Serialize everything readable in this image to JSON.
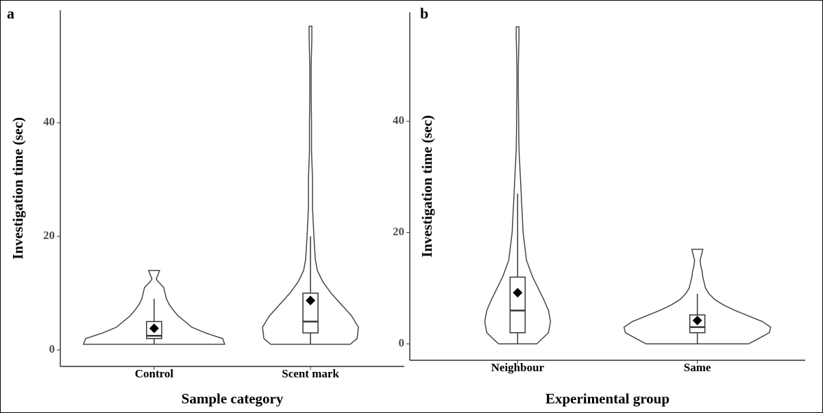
{
  "chart_data": [
    {
      "type": "violin",
      "panel": "a",
      "x_label": "Sample category",
      "y_label": "Investigation time (sec)",
      "categories": [
        "Control",
        "Scent mark"
      ],
      "ylim": [
        -2.9,
        59.8
      ],
      "yticks": [
        0,
        20,
        40
      ],
      "whisker_low": [
        1,
        1
      ],
      "q1": [
        2,
        3
      ],
      "median": [
        2.5,
        5
      ],
      "q3": [
        5,
        10
      ],
      "whisker_high": [
        9,
        20
      ],
      "mean": [
        3.8,
        8.7
      ],
      "density_y": [
        [
          1,
          2,
          3,
          4,
          5,
          6,
          7,
          8,
          9,
          10,
          11,
          12,
          12.5,
          13,
          14
        ],
        [
          1,
          2,
          4,
          6,
          8,
          10,
          12,
          14,
          16,
          20,
          25,
          30,
          35,
          40,
          45,
          50,
          55,
          57
        ]
      ],
      "density": [
        [
          1.03,
          1.0,
          0.75,
          0.55,
          0.45,
          0.35,
          0.28,
          0.22,
          0.18,
          0.16,
          0.14,
          0.06,
          0.03,
          0.05,
          0.08
        ],
        [
          0.58,
          0.68,
          0.7,
          0.6,
          0.45,
          0.3,
          0.18,
          0.1,
          0.07,
          0.05,
          0.03,
          0.03,
          0.015,
          0.015,
          0.01,
          0.01,
          0.02,
          0.02
        ]
      ]
    },
    {
      "type": "violin",
      "panel": "b",
      "x_label": "Experimental group",
      "y_label": "Investigation time (sec)",
      "categories": [
        "Neighbour",
        "Same"
      ],
      "ylim": [
        -2.95,
        59.6
      ],
      "yticks": [
        0,
        20,
        40
      ],
      "whisker_low": [
        0,
        0
      ],
      "q1": [
        2,
        2
      ],
      "median": [
        6,
        3
      ],
      "q3": [
        12,
        5.2
      ],
      "whisker_high": [
        27,
        9
      ],
      "mean": [
        9.2,
        4.2
      ],
      "density_y": [
        [
          0,
          2,
          4,
          6,
          8,
          10,
          12,
          15,
          20,
          25,
          30,
          35,
          40,
          45,
          50,
          55,
          57
        ],
        [
          0,
          1,
          2,
          3,
          4,
          5,
          6,
          7,
          8,
          9,
          10,
          11,
          12,
          13,
          14,
          15,
          16,
          17
        ]
      ],
      "density": [
        [
          0.28,
          0.45,
          0.48,
          0.45,
          0.38,
          0.3,
          0.22,
          0.13,
          0.08,
          0.06,
          0.04,
          0.02,
          0.015,
          0.01,
          0.01,
          0.02,
          0.02
        ],
        [
          0.75,
          0.9,
          1.05,
          1.07,
          0.95,
          0.75,
          0.55,
          0.38,
          0.25,
          0.17,
          0.12,
          0.1,
          0.08,
          0.07,
          0.05,
          0.04,
          0.06,
          0.08
        ]
      ]
    }
  ]
}
